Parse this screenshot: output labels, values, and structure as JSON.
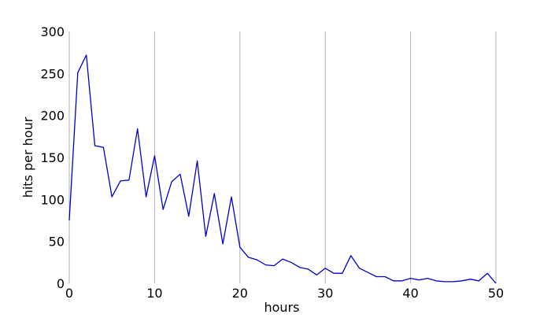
{
  "chart_data": {
    "type": "line",
    "xlabel": "hours",
    "ylabel": "hits per hour",
    "xlim": [
      0,
      50
    ],
    "ylim": [
      0,
      300
    ],
    "xticks": [
      0,
      10,
      20,
      30,
      40,
      50
    ],
    "yticks": [
      0,
      50,
      100,
      150,
      200,
      250,
      300
    ],
    "grid": "vertical",
    "x": [
      0,
      1,
      2,
      3,
      4,
      5,
      6,
      7,
      8,
      9,
      10,
      11,
      12,
      13,
      14,
      15,
      16,
      17,
      18,
      19,
      20,
      21,
      22,
      23,
      24,
      25,
      26,
      27,
      28,
      29,
      30,
      31,
      32,
      33,
      34,
      35,
      36,
      37,
      38,
      39,
      40,
      41,
      42,
      43,
      44,
      45,
      46,
      47,
      48,
      49,
      50
    ],
    "series": [
      {
        "color": "#0000cc",
        "values": [
          75,
          251,
          272,
          164,
          162,
          103,
          122,
          123,
          184,
          103,
          152,
          88,
          121,
          130,
          80,
          146,
          56,
          107,
          47,
          103,
          43,
          31,
          28,
          22,
          21,
          29,
          25,
          19,
          17,
          10,
          18,
          12,
          12,
          33,
          18,
          13,
          8,
          8,
          3,
          3,
          6,
          4,
          6,
          3,
          2,
          2,
          3,
          5,
          3,
          12,
          0
        ]
      }
    ]
  }
}
